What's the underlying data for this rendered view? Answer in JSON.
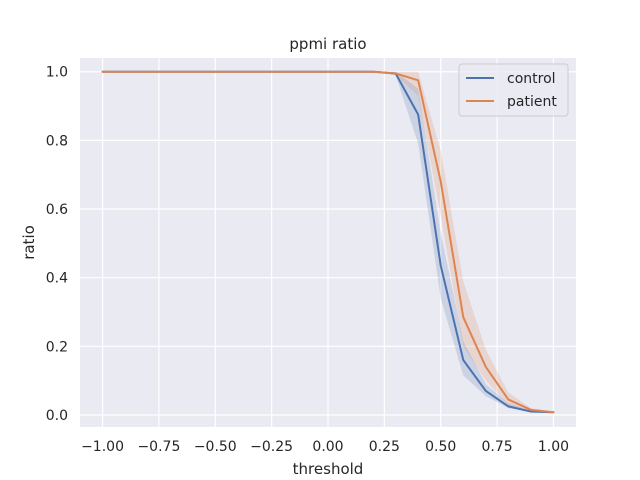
{
  "chart_data": {
    "type": "line",
    "title": "ppmi ratio",
    "xlabel": "threshold",
    "ylabel": "ratio",
    "xlim": [
      -1.1,
      1.1
    ],
    "ylim": [
      -0.035,
      1.04
    ],
    "xticks": [
      -1.0,
      -0.75,
      -0.5,
      -0.25,
      0.0,
      0.25,
      0.5,
      0.75,
      1.0
    ],
    "xtick_labels": [
      "−1.00",
      "−0.75",
      "−0.50",
      "−0.25",
      "0.00",
      "0.25",
      "0.50",
      "0.75",
      "1.00"
    ],
    "yticks": [
      0.0,
      0.2,
      0.4,
      0.6,
      0.8,
      1.0
    ],
    "ytick_labels": [
      "0.0",
      "0.2",
      "0.4",
      "0.6",
      "0.8",
      "1.0"
    ],
    "grid": true,
    "legend_position": "top-right",
    "x": [
      -1.0,
      -0.9,
      -0.8,
      -0.7,
      -0.6,
      -0.5,
      -0.4,
      -0.3,
      -0.2,
      -0.1,
      0.0,
      0.1,
      0.2,
      0.3,
      0.4,
      0.5,
      0.6,
      0.7,
      0.8,
      0.9,
      1.0
    ],
    "series": [
      {
        "name": "control",
        "color": "#4c72b0",
        "values": [
          1.0,
          1.0,
          1.0,
          1.0,
          1.0,
          1.0,
          1.0,
          1.0,
          1.0,
          1.0,
          1.0,
          1.0,
          1.0,
          0.995,
          0.875,
          0.435,
          0.16,
          0.07,
          0.025,
          0.01,
          0.008
        ],
        "ci_lower": [
          1.0,
          1.0,
          1.0,
          1.0,
          1.0,
          1.0,
          1.0,
          1.0,
          1.0,
          1.0,
          1.0,
          1.0,
          1.0,
          0.99,
          0.79,
          0.34,
          0.115,
          0.055,
          0.02,
          0.008,
          0.006
        ],
        "ci_upper": [
          1.0,
          1.0,
          1.0,
          1.0,
          1.0,
          1.0,
          1.0,
          1.0,
          1.0,
          1.0,
          1.0,
          1.0,
          1.0,
          1.0,
          0.95,
          0.53,
          0.215,
          0.09,
          0.035,
          0.013,
          0.01
        ]
      },
      {
        "name": "patient",
        "color": "#dd8452",
        "values": [
          1.0,
          1.0,
          1.0,
          1.0,
          1.0,
          1.0,
          1.0,
          1.0,
          1.0,
          1.0,
          1.0,
          1.0,
          1.0,
          0.995,
          0.975,
          0.68,
          0.285,
          0.14,
          0.045,
          0.015,
          0.008
        ],
        "ci_lower": [
          1.0,
          1.0,
          1.0,
          1.0,
          1.0,
          1.0,
          1.0,
          1.0,
          1.0,
          1.0,
          1.0,
          1.0,
          1.0,
          0.99,
          0.93,
          0.58,
          0.2,
          0.1,
          0.03,
          0.01,
          0.006
        ],
        "ci_upper": [
          1.0,
          1.0,
          1.0,
          1.0,
          1.0,
          1.0,
          1.0,
          1.0,
          1.0,
          1.0,
          1.0,
          1.0,
          1.0,
          1.0,
          1.0,
          0.77,
          0.39,
          0.19,
          0.065,
          0.02,
          0.01
        ]
      }
    ],
    "colors": {
      "background": "#eaeaf2",
      "grid": "#ffffff"
    }
  }
}
